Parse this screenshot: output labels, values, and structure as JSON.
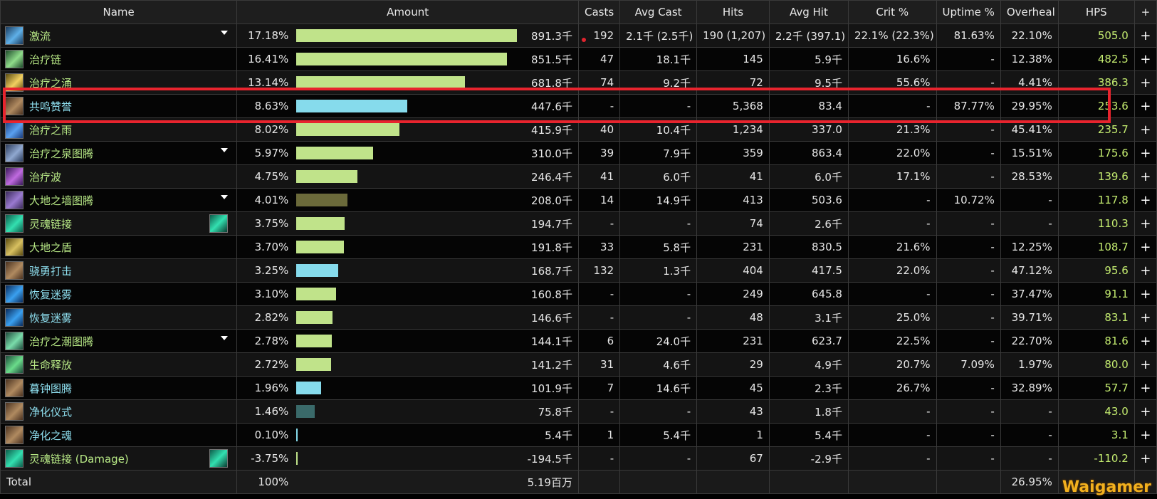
{
  "headers": [
    "Name",
    "Amount",
    "Casts",
    "Avg Cast",
    "Hits",
    "Avg Hit",
    "Crit %",
    "Uptime %",
    "Overheal",
    "HPS",
    "+"
  ],
  "bar_colors": {
    "green": "#c0e38a",
    "cyan": "#86dbec",
    "olive": "#6b6a3a",
    "teal": "#3a6a6a"
  },
  "rows": [
    {
      "name": "激流",
      "name_color": "green",
      "icon": "riptide-icon",
      "expand": true,
      "extra_icon": null,
      "pct": "17.18%",
      "fraction": 1.0,
      "bar": "green",
      "amount": "891.3千",
      "casts": "192",
      "avg_cast": "2.1千 (2.5千)",
      "hits": "190 (1,207)",
      "avg_hit": "2.2千 (397.1)",
      "crit": "22.1% (22.3%)",
      "uptime": "81.63%",
      "overheal": "22.10%",
      "hps": "505.0"
    },
    {
      "name": "治疗链",
      "name_color": "green",
      "icon": "chain-heal-icon",
      "expand": false,
      "extra_icon": null,
      "pct": "16.41%",
      "fraction": 0.955,
      "bar": "green",
      "amount": "851.5千",
      "casts": "47",
      "avg_cast": "18.1千",
      "hits": "145",
      "avg_hit": "5.9千",
      "crit": "16.6%",
      "uptime": "-",
      "overheal": "12.38%",
      "hps": "482.5"
    },
    {
      "name": "治疗之涌",
      "name_color": "green",
      "icon": "healing-surge-icon",
      "expand": false,
      "extra_icon": null,
      "pct": "13.14%",
      "fraction": 0.765,
      "bar": "green",
      "amount": "681.8千",
      "casts": "74",
      "avg_cast": "9.2千",
      "hits": "72",
      "avg_hit": "9.5千",
      "crit": "55.6%",
      "uptime": "-",
      "overheal": "4.41%",
      "hps": "386.3"
    },
    {
      "name": "共鸣赞誉",
      "name_color": "cyan",
      "icon": "echoing-reprimand-icon",
      "expand": false,
      "extra_icon": null,
      "pct": "8.63%",
      "fraction": 0.502,
      "bar": "cyan",
      "amount": "447.6千",
      "casts": "-",
      "avg_cast": "-",
      "hits": "5,368",
      "avg_hit": "83.4",
      "crit": "-",
      "uptime": "87.77%",
      "overheal": "29.95%",
      "hps": "253.6"
    },
    {
      "name": "治疗之雨",
      "name_color": "green",
      "icon": "healing-rain-icon",
      "expand": false,
      "extra_icon": null,
      "pct": "8.02%",
      "fraction": 0.467,
      "bar": "green",
      "amount": "415.9千",
      "casts": "40",
      "avg_cast": "10.4千",
      "hits": "1,234",
      "avg_hit": "337.0",
      "crit": "21.3%",
      "uptime": "-",
      "overheal": "45.41%",
      "hps": "235.7"
    },
    {
      "name": "治疗之泉图腾",
      "name_color": "green",
      "icon": "healing-stream-totem-icon",
      "expand": true,
      "extra_icon": null,
      "pct": "5.97%",
      "fraction": 0.348,
      "bar": "green",
      "amount": "310.0千",
      "casts": "39",
      "avg_cast": "7.9千",
      "hits": "359",
      "avg_hit": "863.4",
      "crit": "22.0%",
      "uptime": "-",
      "overheal": "15.51%",
      "hps": "175.6"
    },
    {
      "name": "治疗波",
      "name_color": "green",
      "icon": "healing-wave-icon",
      "expand": false,
      "extra_icon": null,
      "pct": "4.75%",
      "fraction": 0.276,
      "bar": "green",
      "amount": "246.4千",
      "casts": "41",
      "avg_cast": "6.0千",
      "hits": "41",
      "avg_hit": "6.0千",
      "crit": "17.1%",
      "uptime": "-",
      "overheal": "28.53%",
      "hps": "139.6"
    },
    {
      "name": "大地之墙图腾",
      "name_color": "green",
      "icon": "earthen-wall-totem-icon",
      "expand": true,
      "extra_icon": null,
      "pct": "4.01%",
      "fraction": 0.233,
      "bar": "olive",
      "amount": "208.0千",
      "casts": "14",
      "avg_cast": "14.9千",
      "hits": "413",
      "avg_hit": "503.6",
      "crit": "-",
      "uptime": "10.72%",
      "overheal": "-",
      "hps": "117.8"
    },
    {
      "name": "灵魂链接",
      "name_color": "green",
      "icon": "spirit-link-icon",
      "expand": false,
      "extra_icon": "spirit-link-icon",
      "pct": "3.75%",
      "fraction": 0.218,
      "bar": "green",
      "amount": "194.7千",
      "casts": "-",
      "avg_cast": "-",
      "hits": "74",
      "avg_hit": "2.6千",
      "crit": "-",
      "uptime": "-",
      "overheal": "-",
      "hps": "110.3"
    },
    {
      "name": "大地之盾",
      "name_color": "green",
      "icon": "earth-shield-icon",
      "expand": false,
      "extra_icon": null,
      "pct": "3.70%",
      "fraction": 0.215,
      "bar": "green",
      "amount": "191.8千",
      "casts": "33",
      "avg_cast": "5.8千",
      "hits": "231",
      "avg_hit": "830.5",
      "crit": "21.6%",
      "uptime": "-",
      "overheal": "12.25%",
      "hps": "108.7"
    },
    {
      "name": "骁勇打击",
      "name_color": "cyan",
      "icon": "valiant-strikes-icon",
      "expand": false,
      "extra_icon": null,
      "pct": "3.25%",
      "fraction": 0.189,
      "bar": "cyan",
      "amount": "168.7千",
      "casts": "132",
      "avg_cast": "1.3千",
      "hits": "404",
      "avg_hit": "417.5",
      "crit": "22.0%",
      "uptime": "-",
      "overheal": "47.12%",
      "hps": "95.6"
    },
    {
      "name": "恢复迷雾",
      "name_color": "cyan",
      "icon": "renewing-mist-icon",
      "expand": false,
      "extra_icon": null,
      "pct": "3.10%",
      "fraction": 0.18,
      "bar": "green",
      "amount": "160.8千",
      "casts": "-",
      "avg_cast": "-",
      "hits": "249",
      "avg_hit": "645.8",
      "crit": "-",
      "uptime": "-",
      "overheal": "37.47%",
      "hps": "91.1"
    },
    {
      "name": "恢复迷雾",
      "name_color": "cyan",
      "icon": "renewing-mist-icon",
      "expand": false,
      "extra_icon": null,
      "pct": "2.82%",
      "fraction": 0.164,
      "bar": "green",
      "amount": "146.6千",
      "casts": "-",
      "avg_cast": "-",
      "hits": "48",
      "avg_hit": "3.1千",
      "crit": "25.0%",
      "uptime": "-",
      "overheal": "39.71%",
      "hps": "83.1"
    },
    {
      "name": "治疗之潮图腾",
      "name_color": "green",
      "icon": "healing-tide-totem-icon",
      "expand": true,
      "extra_icon": null,
      "pct": "2.78%",
      "fraction": 0.162,
      "bar": "green",
      "amount": "144.1千",
      "casts": "6",
      "avg_cast": "24.0千",
      "hits": "231",
      "avg_hit": "623.7",
      "crit": "22.5%",
      "uptime": "-",
      "overheal": "22.70%",
      "hps": "81.6"
    },
    {
      "name": "生命释放",
      "name_color": "green",
      "icon": "unleash-life-icon",
      "expand": false,
      "extra_icon": null,
      "pct": "2.72%",
      "fraction": 0.158,
      "bar": "green",
      "amount": "141.2千",
      "casts": "31",
      "avg_cast": "4.6千",
      "hits": "29",
      "avg_hit": "4.9千",
      "crit": "20.7%",
      "uptime": "7.09%",
      "overheal": "1.97%",
      "hps": "80.0"
    },
    {
      "name": "暮钟图腾",
      "name_color": "cyan",
      "icon": "vesper-totem-icon",
      "expand": false,
      "extra_icon": null,
      "pct": "1.96%",
      "fraction": 0.114,
      "bar": "cyan",
      "amount": "101.9千",
      "casts": "7",
      "avg_cast": "14.6千",
      "hits": "45",
      "avg_hit": "2.3千",
      "crit": "26.7%",
      "uptime": "-",
      "overheal": "32.89%",
      "hps": "57.7"
    },
    {
      "name": "净化仪式",
      "name_color": "cyan",
      "icon": "purify-ritual-icon",
      "expand": false,
      "extra_icon": null,
      "pct": "1.46%",
      "fraction": 0.085,
      "bar": "teal",
      "amount": "75.8千",
      "casts": "-",
      "avg_cast": "-",
      "hits": "43",
      "avg_hit": "1.8千",
      "crit": "-",
      "uptime": "-",
      "overheal": "-",
      "hps": "43.0"
    },
    {
      "name": "净化之魂",
      "name_color": "cyan",
      "icon": "purify-soul-icon",
      "expand": false,
      "extra_icon": null,
      "pct": "0.10%",
      "fraction": 0.006,
      "bar": "cyan",
      "amount": "5.4千",
      "casts": "1",
      "avg_cast": "5.4千",
      "hits": "1",
      "avg_hit": "5.4千",
      "crit": "-",
      "uptime": "-",
      "overheal": "-",
      "hps": "3.1"
    },
    {
      "name": "灵魂链接 (Damage)",
      "name_color": "green",
      "icon": "spirit-link-icon",
      "expand": false,
      "extra_icon": "spirit-link-icon",
      "pct": "-3.75%",
      "fraction": 0.006,
      "bar": "green",
      "amount": "-194.5千",
      "casts": "-",
      "avg_cast": "-",
      "hits": "67",
      "avg_hit": "-2.9千",
      "crit": "-",
      "uptime": "-",
      "overheal": "-",
      "hps": "-110.2"
    }
  ],
  "total": {
    "label": "Total",
    "pct": "100%",
    "amount": "5.19百万",
    "overheal": "26.95%"
  },
  "watermark": "Waigamer",
  "icon_colors": {
    "riptide-icon": [
      "#1a3a5c",
      "#5fb0e8"
    ],
    "chain-heal-icon": [
      "#1d4a2a",
      "#8fdc8a"
    ],
    "healing-surge-icon": [
      "#5a4a10",
      "#f2d060"
    ],
    "echoing-reprimand-icon": [
      "#4a3220",
      "#b08a60"
    ],
    "healing-rain-icon": [
      "#1a3a7a",
      "#5aa0f0"
    ],
    "healing-stream-totem-icon": [
      "#2a3a5a",
      "#90a8d0"
    ],
    "healing-wave-icon": [
      "#3a1a5a",
      "#c06ae0"
    ],
    "earthen-wall-totem-icon": [
      "#3a2a5a",
      "#9a7ad0"
    ],
    "spirit-link-icon": [
      "#0d5c4a",
      "#33e0b0"
    ],
    "earth-shield-icon": [
      "#5a4a10",
      "#d8c060"
    ],
    "valiant-strikes-icon": [
      "#4a3220",
      "#b08a60"
    ],
    "renewing-mist-icon": [
      "#0a2a5a",
      "#3aa0f0"
    ],
    "healing-tide-totem-icon": [
      "#1d4a3a",
      "#7adcaa"
    ],
    "unleash-life-icon": [
      "#1d4a3a",
      "#6adc8a"
    ],
    "vesper-totem-icon": [
      "#4a3220",
      "#b08a60"
    ],
    "purify-ritual-icon": [
      "#4a3220",
      "#b08a60"
    ],
    "purify-soul-icon": [
      "#4a3220",
      "#b08a60"
    ]
  },
  "highlight_color": "#e8242e"
}
